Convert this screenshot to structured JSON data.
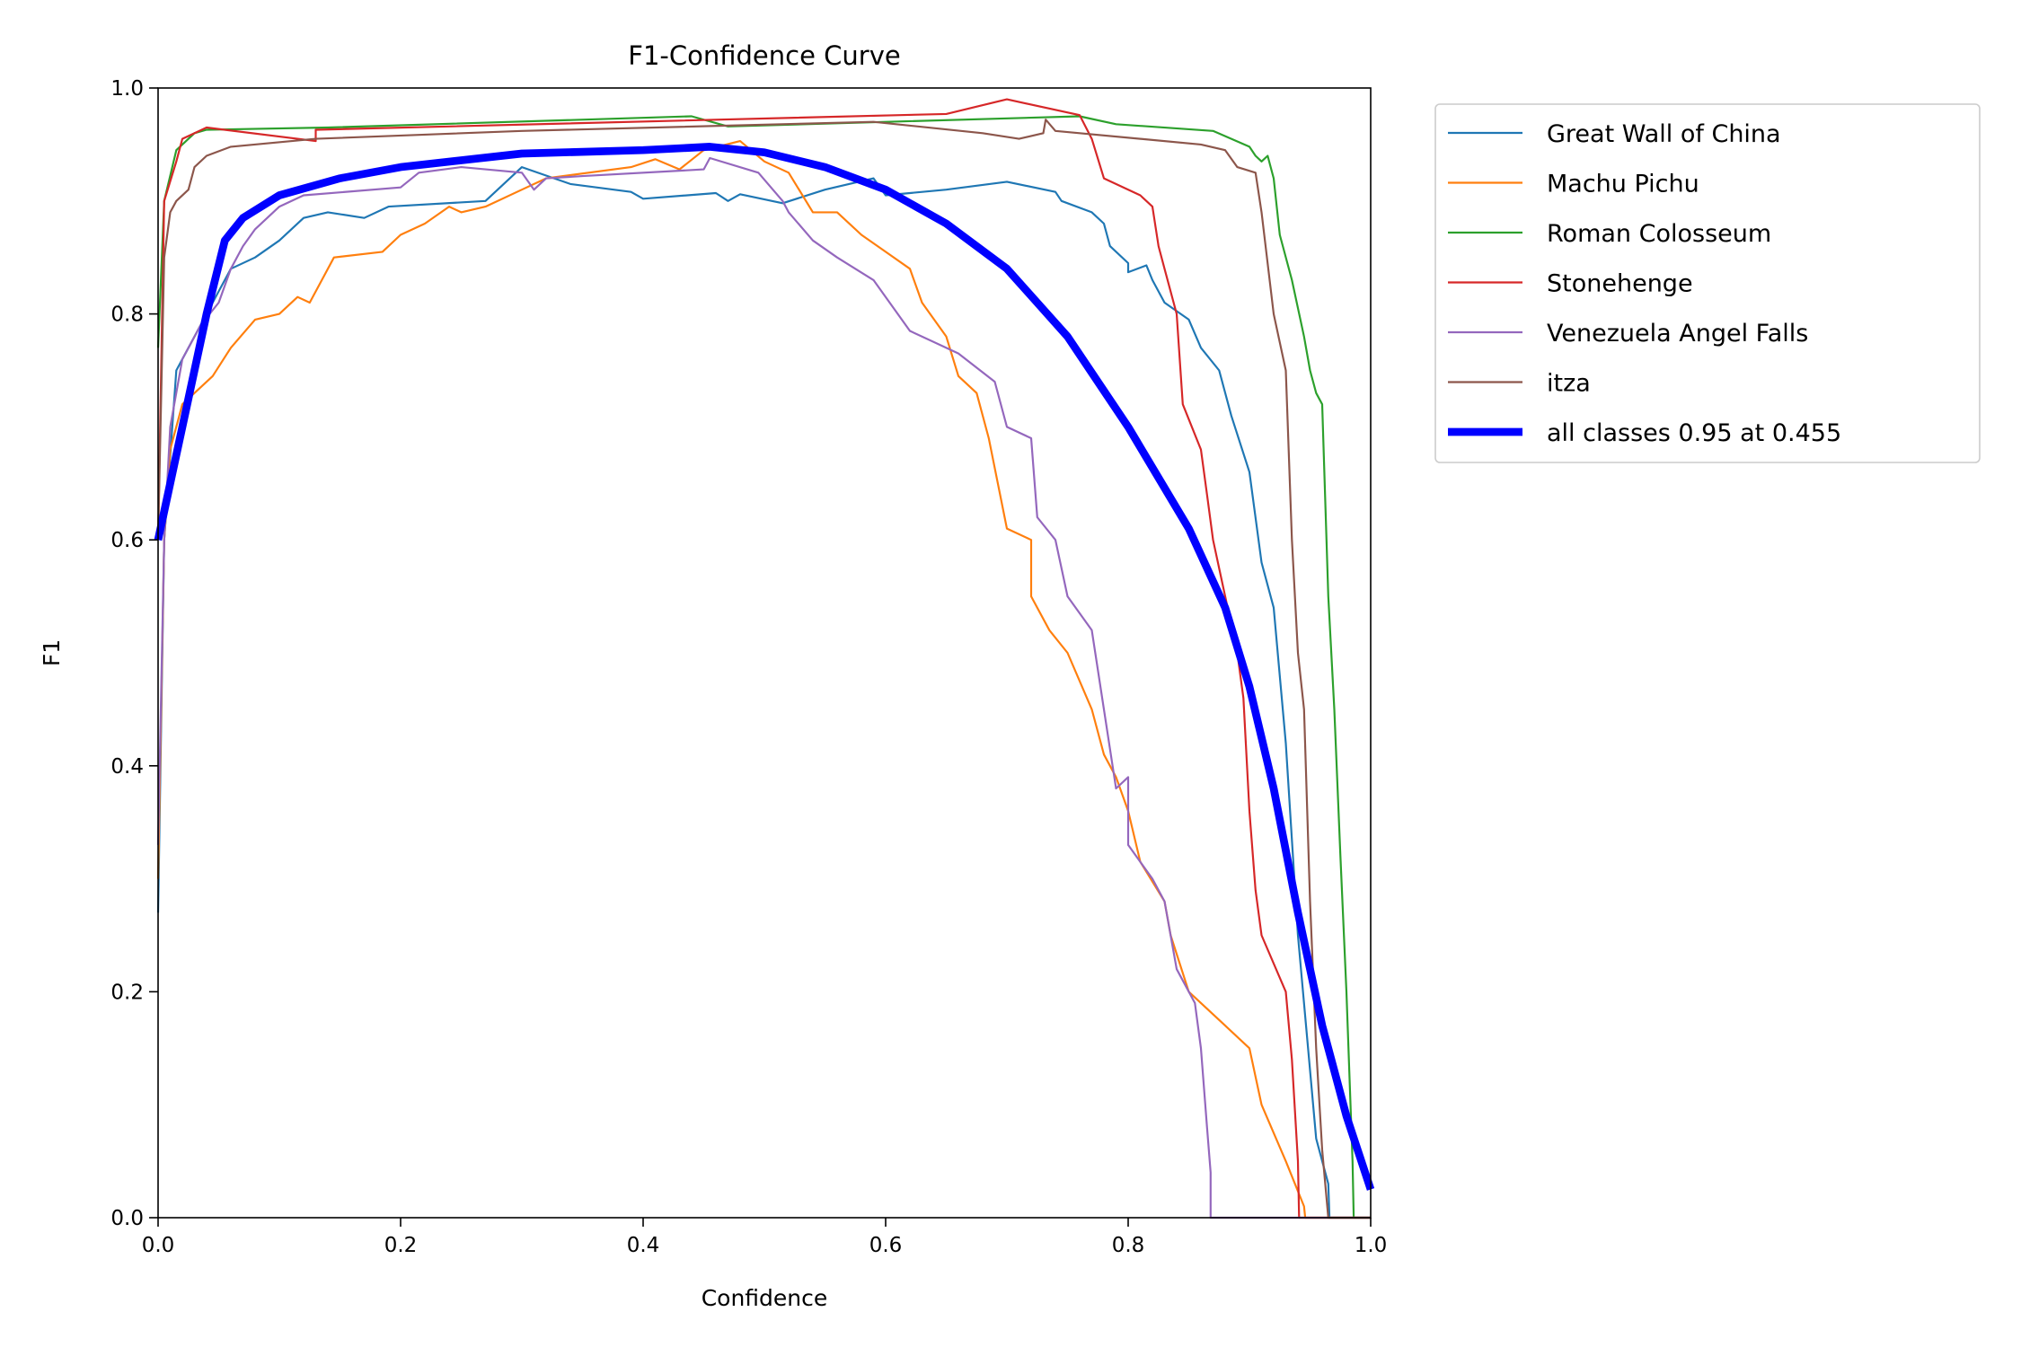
{
  "chart_data": {
    "type": "line",
    "title": "F1-Confidence Curve",
    "xlabel": "Confidence",
    "ylabel": "F1",
    "xlim": [
      0,
      1
    ],
    "ylim": [
      0,
      1
    ],
    "xticks": [
      "0.0",
      "0.2",
      "0.4",
      "0.6",
      "0.8",
      "1.0"
    ],
    "yticks": [
      "0.0",
      "0.2",
      "0.4",
      "0.6",
      "0.8",
      "1.0"
    ],
    "grid": false,
    "legend_position": "outside-top-right",
    "series": [
      {
        "name": "Great Wall of China",
        "color": "#1f77b4",
        "width": 1.5,
        "points": [
          [
            0,
            0.27
          ],
          [
            0.005,
            0.6
          ],
          [
            0.015,
            0.75
          ],
          [
            0.025,
            0.77
          ],
          [
            0.035,
            0.79
          ],
          [
            0.05,
            0.82
          ],
          [
            0.06,
            0.84
          ],
          [
            0.08,
            0.85
          ],
          [
            0.1,
            0.865
          ],
          [
            0.12,
            0.885
          ],
          [
            0.14,
            0.89
          ],
          [
            0.17,
            0.885
          ],
          [
            0.19,
            0.895
          ],
          [
            0.27,
            0.9
          ],
          [
            0.3,
            0.93
          ],
          [
            0.34,
            0.915
          ],
          [
            0.39,
            0.908
          ],
          [
            0.4,
            0.902
          ],
          [
            0.46,
            0.907
          ],
          [
            0.47,
            0.9
          ],
          [
            0.48,
            0.906
          ],
          [
            0.515,
            0.898
          ],
          [
            0.55,
            0.91
          ],
          [
            0.59,
            0.92
          ],
          [
            0.6,
            0.905
          ],
          [
            0.65,
            0.91
          ],
          [
            0.7,
            0.917
          ],
          [
            0.74,
            0.908
          ],
          [
            0.745,
            0.9
          ],
          [
            0.77,
            0.89
          ],
          [
            0.78,
            0.88
          ],
          [
            0.785,
            0.86
          ],
          [
            0.8,
            0.845
          ],
          [
            0.8,
            0.837
          ],
          [
            0.815,
            0.843
          ],
          [
            0.82,
            0.83
          ],
          [
            0.83,
            0.81
          ],
          [
            0.85,
            0.795
          ],
          [
            0.86,
            0.77
          ],
          [
            0.875,
            0.75
          ],
          [
            0.885,
            0.71
          ],
          [
            0.9,
            0.66
          ],
          [
            0.91,
            0.58
          ],
          [
            0.92,
            0.54
          ],
          [
            0.93,
            0.42
          ],
          [
            0.94,
            0.25
          ],
          [
            0.955,
            0.07
          ],
          [
            0.965,
            0.03
          ],
          [
            0.966,
            0
          ],
          [
            1,
            0
          ]
        ]
      },
      {
        "name": "Machu Pichu",
        "color": "#ff7f0e",
        "width": 1.5,
        "points": [
          [
            0,
            0.3
          ],
          [
            0.005,
            0.6
          ],
          [
            0.01,
            0.68
          ],
          [
            0.02,
            0.72
          ],
          [
            0.03,
            0.73
          ],
          [
            0.045,
            0.745
          ],
          [
            0.06,
            0.77
          ],
          [
            0.08,
            0.795
          ],
          [
            0.1,
            0.8
          ],
          [
            0.115,
            0.815
          ],
          [
            0.125,
            0.81
          ],
          [
            0.135,
            0.83
          ],
          [
            0.145,
            0.85
          ],
          [
            0.185,
            0.855
          ],
          [
            0.2,
            0.87
          ],
          [
            0.22,
            0.88
          ],
          [
            0.24,
            0.895
          ],
          [
            0.25,
            0.89
          ],
          [
            0.27,
            0.895
          ],
          [
            0.3,
            0.91
          ],
          [
            0.32,
            0.92
          ],
          [
            0.39,
            0.93
          ],
          [
            0.41,
            0.937
          ],
          [
            0.43,
            0.928
          ],
          [
            0.45,
            0.945
          ],
          [
            0.48,
            0.953
          ],
          [
            0.5,
            0.935
          ],
          [
            0.52,
            0.925
          ],
          [
            0.54,
            0.89
          ],
          [
            0.56,
            0.89
          ],
          [
            0.58,
            0.87
          ],
          [
            0.6,
            0.855
          ],
          [
            0.62,
            0.84
          ],
          [
            0.63,
            0.81
          ],
          [
            0.65,
            0.78
          ],
          [
            0.66,
            0.745
          ],
          [
            0.675,
            0.73
          ],
          [
            0.685,
            0.69
          ],
          [
            0.7,
            0.61
          ],
          [
            0.72,
            0.6
          ],
          [
            0.72,
            0.55
          ],
          [
            0.735,
            0.52
          ],
          [
            0.75,
            0.5
          ],
          [
            0.77,
            0.45
          ],
          [
            0.78,
            0.41
          ],
          [
            0.79,
            0.39
          ],
          [
            0.8,
            0.36
          ],
          [
            0.81,
            0.315
          ],
          [
            0.83,
            0.28
          ],
          [
            0.835,
            0.25
          ],
          [
            0.85,
            0.2
          ],
          [
            0.88,
            0.17
          ],
          [
            0.9,
            0.15
          ],
          [
            0.91,
            0.1
          ],
          [
            0.93,
            0.05
          ],
          [
            0.945,
            0.01
          ],
          [
            0.946,
            0
          ],
          [
            1,
            0
          ]
        ]
      },
      {
        "name": "Roman Colosseum",
        "color": "#2ca02c",
        "width": 1.5,
        "points": [
          [
            0,
            0.77
          ],
          [
            0.005,
            0.9
          ],
          [
            0.015,
            0.945
          ],
          [
            0.03,
            0.96
          ],
          [
            0.04,
            0.963
          ],
          [
            0.14,
            0.965
          ],
          [
            0.44,
            0.975
          ],
          [
            0.47,
            0.966
          ],
          [
            0.76,
            0.975
          ],
          [
            0.79,
            0.968
          ],
          [
            0.87,
            0.962
          ],
          [
            0.9,
            0.948
          ],
          [
            0.905,
            0.94
          ],
          [
            0.91,
            0.935
          ],
          [
            0.915,
            0.94
          ],
          [
            0.92,
            0.92
          ],
          [
            0.925,
            0.87
          ],
          [
            0.935,
            0.83
          ],
          [
            0.945,
            0.78
          ],
          [
            0.95,
            0.75
          ],
          [
            0.955,
            0.73
          ],
          [
            0.96,
            0.72
          ],
          [
            0.965,
            0.55
          ],
          [
            0.97,
            0.45
          ],
          [
            0.975,
            0.32
          ],
          [
            0.98,
            0.2
          ],
          [
            0.985,
            0.05
          ],
          [
            0.986,
            0
          ],
          [
            1,
            0
          ]
        ]
      },
      {
        "name": "Stonehenge",
        "color": "#d62728",
        "width": 1.5,
        "points": [
          [
            0,
            0.6
          ],
          [
            0.005,
            0.9
          ],
          [
            0.015,
            0.935
          ],
          [
            0.02,
            0.955
          ],
          [
            0.04,
            0.965
          ],
          [
            0.13,
            0.953
          ],
          [
            0.13,
            0.963
          ],
          [
            0.65,
            0.977
          ],
          [
            0.7,
            0.99
          ],
          [
            0.76,
            0.976
          ],
          [
            0.77,
            0.955
          ],
          [
            0.78,
            0.92
          ],
          [
            0.81,
            0.905
          ],
          [
            0.82,
            0.895
          ],
          [
            0.825,
            0.86
          ],
          [
            0.83,
            0.84
          ],
          [
            0.84,
            0.8
          ],
          [
            0.845,
            0.72
          ],
          [
            0.86,
            0.68
          ],
          [
            0.865,
            0.64
          ],
          [
            0.87,
            0.6
          ],
          [
            0.88,
            0.55
          ],
          [
            0.89,
            0.5
          ],
          [
            0.895,
            0.46
          ],
          [
            0.9,
            0.36
          ],
          [
            0.905,
            0.29
          ],
          [
            0.91,
            0.25
          ],
          [
            0.93,
            0.2
          ],
          [
            0.935,
            0.14
          ],
          [
            0.94,
            0.05
          ],
          [
            0.941,
            0
          ],
          [
            1,
            0
          ]
        ]
      },
      {
        "name": "Venezuela Angel Falls",
        "color": "#9467bd",
        "width": 1.5,
        "points": [
          [
            0,
            0.33
          ],
          [
            0.005,
            0.6
          ],
          [
            0.01,
            0.7
          ],
          [
            0.02,
            0.76
          ],
          [
            0.035,
            0.79
          ],
          [
            0.05,
            0.81
          ],
          [
            0.06,
            0.84
          ],
          [
            0.07,
            0.86
          ],
          [
            0.08,
            0.875
          ],
          [
            0.1,
            0.895
          ],
          [
            0.12,
            0.905
          ],
          [
            0.2,
            0.912
          ],
          [
            0.215,
            0.925
          ],
          [
            0.25,
            0.93
          ],
          [
            0.3,
            0.925
          ],
          [
            0.31,
            0.91
          ],
          [
            0.32,
            0.92
          ],
          [
            0.35,
            0.922
          ],
          [
            0.45,
            0.928
          ],
          [
            0.455,
            0.938
          ],
          [
            0.495,
            0.925
          ],
          [
            0.515,
            0.9
          ],
          [
            0.52,
            0.89
          ],
          [
            0.54,
            0.865
          ],
          [
            0.56,
            0.85
          ],
          [
            0.59,
            0.83
          ],
          [
            0.61,
            0.8
          ],
          [
            0.62,
            0.785
          ],
          [
            0.66,
            0.765
          ],
          [
            0.69,
            0.74
          ],
          [
            0.7,
            0.7
          ],
          [
            0.72,
            0.69
          ],
          [
            0.725,
            0.62
          ],
          [
            0.74,
            0.6
          ],
          [
            0.75,
            0.55
          ],
          [
            0.77,
            0.52
          ],
          [
            0.78,
            0.45
          ],
          [
            0.79,
            0.38
          ],
          [
            0.8,
            0.39
          ],
          [
            0.8,
            0.33
          ],
          [
            0.82,
            0.3
          ],
          [
            0.83,
            0.28
          ],
          [
            0.84,
            0.22
          ],
          [
            0.855,
            0.19
          ],
          [
            0.86,
            0.15
          ],
          [
            0.865,
            0.08
          ],
          [
            0.868,
            0.04
          ],
          [
            0.868,
            0
          ],
          [
            1,
            0
          ]
        ]
      },
      {
        "name": "itza",
        "color": "#8c564b",
        "width": 1.5,
        "points": [
          [
            0,
            0.6
          ],
          [
            0.005,
            0.85
          ],
          [
            0.01,
            0.89
          ],
          [
            0.015,
            0.9
          ],
          [
            0.025,
            0.91
          ],
          [
            0.03,
            0.93
          ],
          [
            0.04,
            0.94
          ],
          [
            0.06,
            0.948
          ],
          [
            0.13,
            0.955
          ],
          [
            0.3,
            0.962
          ],
          [
            0.59,
            0.97
          ],
          [
            0.68,
            0.96
          ],
          [
            0.71,
            0.955
          ],
          [
            0.73,
            0.96
          ],
          [
            0.732,
            0.972
          ],
          [
            0.74,
            0.962
          ],
          [
            0.76,
            0.96
          ],
          [
            0.86,
            0.95
          ],
          [
            0.88,
            0.945
          ],
          [
            0.89,
            0.93
          ],
          [
            0.905,
            0.925
          ],
          [
            0.91,
            0.89
          ],
          [
            0.92,
            0.8
          ],
          [
            0.93,
            0.75
          ],
          [
            0.935,
            0.6
          ],
          [
            0.94,
            0.5
          ],
          [
            0.945,
            0.45
          ],
          [
            0.95,
            0.28
          ],
          [
            0.955,
            0.15
          ],
          [
            0.96,
            0.06
          ],
          [
            0.965,
            0
          ],
          [
            1,
            0
          ]
        ]
      },
      {
        "name": "all classes 0.95 at 0.455",
        "color": "#0000ff",
        "width": 6,
        "points": [
          [
            0,
            0.6
          ],
          [
            0.02,
            0.7
          ],
          [
            0.04,
            0.8
          ],
          [
            0.055,
            0.865
          ],
          [
            0.07,
            0.885
          ],
          [
            0.1,
            0.905
          ],
          [
            0.15,
            0.92
          ],
          [
            0.2,
            0.93
          ],
          [
            0.3,
            0.942
          ],
          [
            0.4,
            0.945
          ],
          [
            0.455,
            0.948
          ],
          [
            0.5,
            0.943
          ],
          [
            0.55,
            0.93
          ],
          [
            0.6,
            0.91
          ],
          [
            0.65,
            0.88
          ],
          [
            0.7,
            0.84
          ],
          [
            0.75,
            0.78
          ],
          [
            0.8,
            0.7
          ],
          [
            0.85,
            0.61
          ],
          [
            0.88,
            0.54
          ],
          [
            0.9,
            0.47
          ],
          [
            0.92,
            0.38
          ],
          [
            0.94,
            0.27
          ],
          [
            0.96,
            0.17
          ],
          [
            0.98,
            0.09
          ],
          [
            1,
            0.025
          ]
        ]
      }
    ]
  }
}
